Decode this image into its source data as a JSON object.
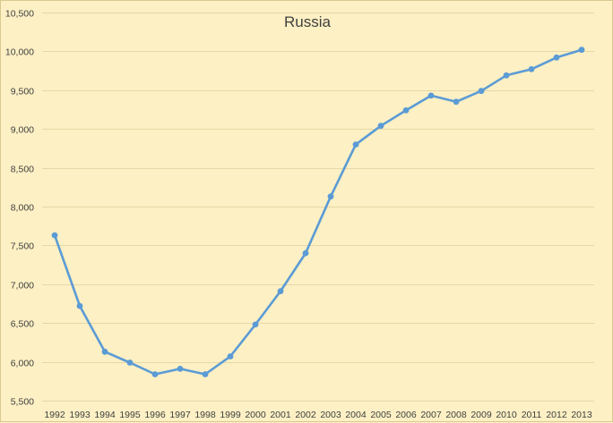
{
  "chart_data": {
    "type": "line",
    "title": "Russia",
    "xlabel": "",
    "ylabel": "",
    "categories": [
      "1992",
      "1993",
      "1994",
      "1995",
      "1996",
      "1997",
      "1998",
      "1999",
      "2000",
      "2001",
      "2002",
      "2003",
      "2004",
      "2005",
      "2006",
      "2007",
      "2008",
      "2009",
      "2010",
      "2011",
      "2012",
      "2013"
    ],
    "series": [
      {
        "values": [
          7630,
          6720,
          6130,
          5990,
          5840,
          5910,
          5840,
          6070,
          6480,
          6910,
          7400,
          8130,
          8800,
          9040,
          9240,
          9430,
          9350,
          9490,
          9690,
          9770,
          9920,
          10020
        ],
        "color": "#5b9bd5"
      }
    ],
    "ylim": [
      5500,
      10500
    ],
    "yticks": [
      5500,
      6000,
      6500,
      7000,
      7500,
      8000,
      8500,
      9000,
      9500,
      10000,
      10500
    ],
    "ytick_labels": [
      "5,500",
      "6,000",
      "6,500",
      "7,000",
      "7,500",
      "8,000",
      "8,500",
      "9,000",
      "9,500",
      "10,000",
      "10,500"
    ],
    "grid": true,
    "legend": "none",
    "colors": {
      "background": "#fdf0c4",
      "grid": "#e6d7a6",
      "text": "#404040"
    }
  }
}
